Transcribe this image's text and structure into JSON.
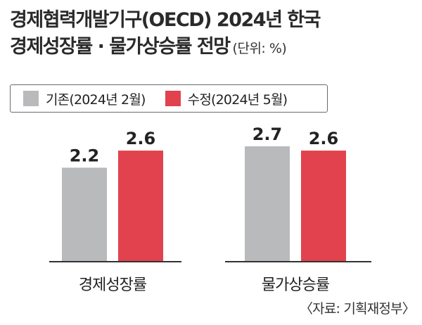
{
  "title": {
    "line1": "경제협력개발기구(OECD) 2024년 한국",
    "line2": "경제성장률 · 물가상승률 전망",
    "unit": "(단위: %)"
  },
  "source": "〈자료: 기획재정부〉",
  "colors": {
    "previous": "#b9babc",
    "revised": "#e2424d",
    "axis": "#333333"
  },
  "chart_data": {
    "type": "bar",
    "categories": [
      "경제성장률",
      "물가상승률"
    ],
    "series": [
      {
        "name": "기존(2024년 2월)",
        "values": [
          2.2,
          2.7
        ],
        "labels": [
          "2.2",
          "2.7"
        ]
      },
      {
        "name": "수정(2024년 5월)",
        "values": [
          2.6,
          2.6
        ],
        "labels": [
          "2.6",
          "2.6"
        ]
      }
    ],
    "ylim": [
      0,
      2.7
    ],
    "grid": false,
    "legend": "top"
  }
}
